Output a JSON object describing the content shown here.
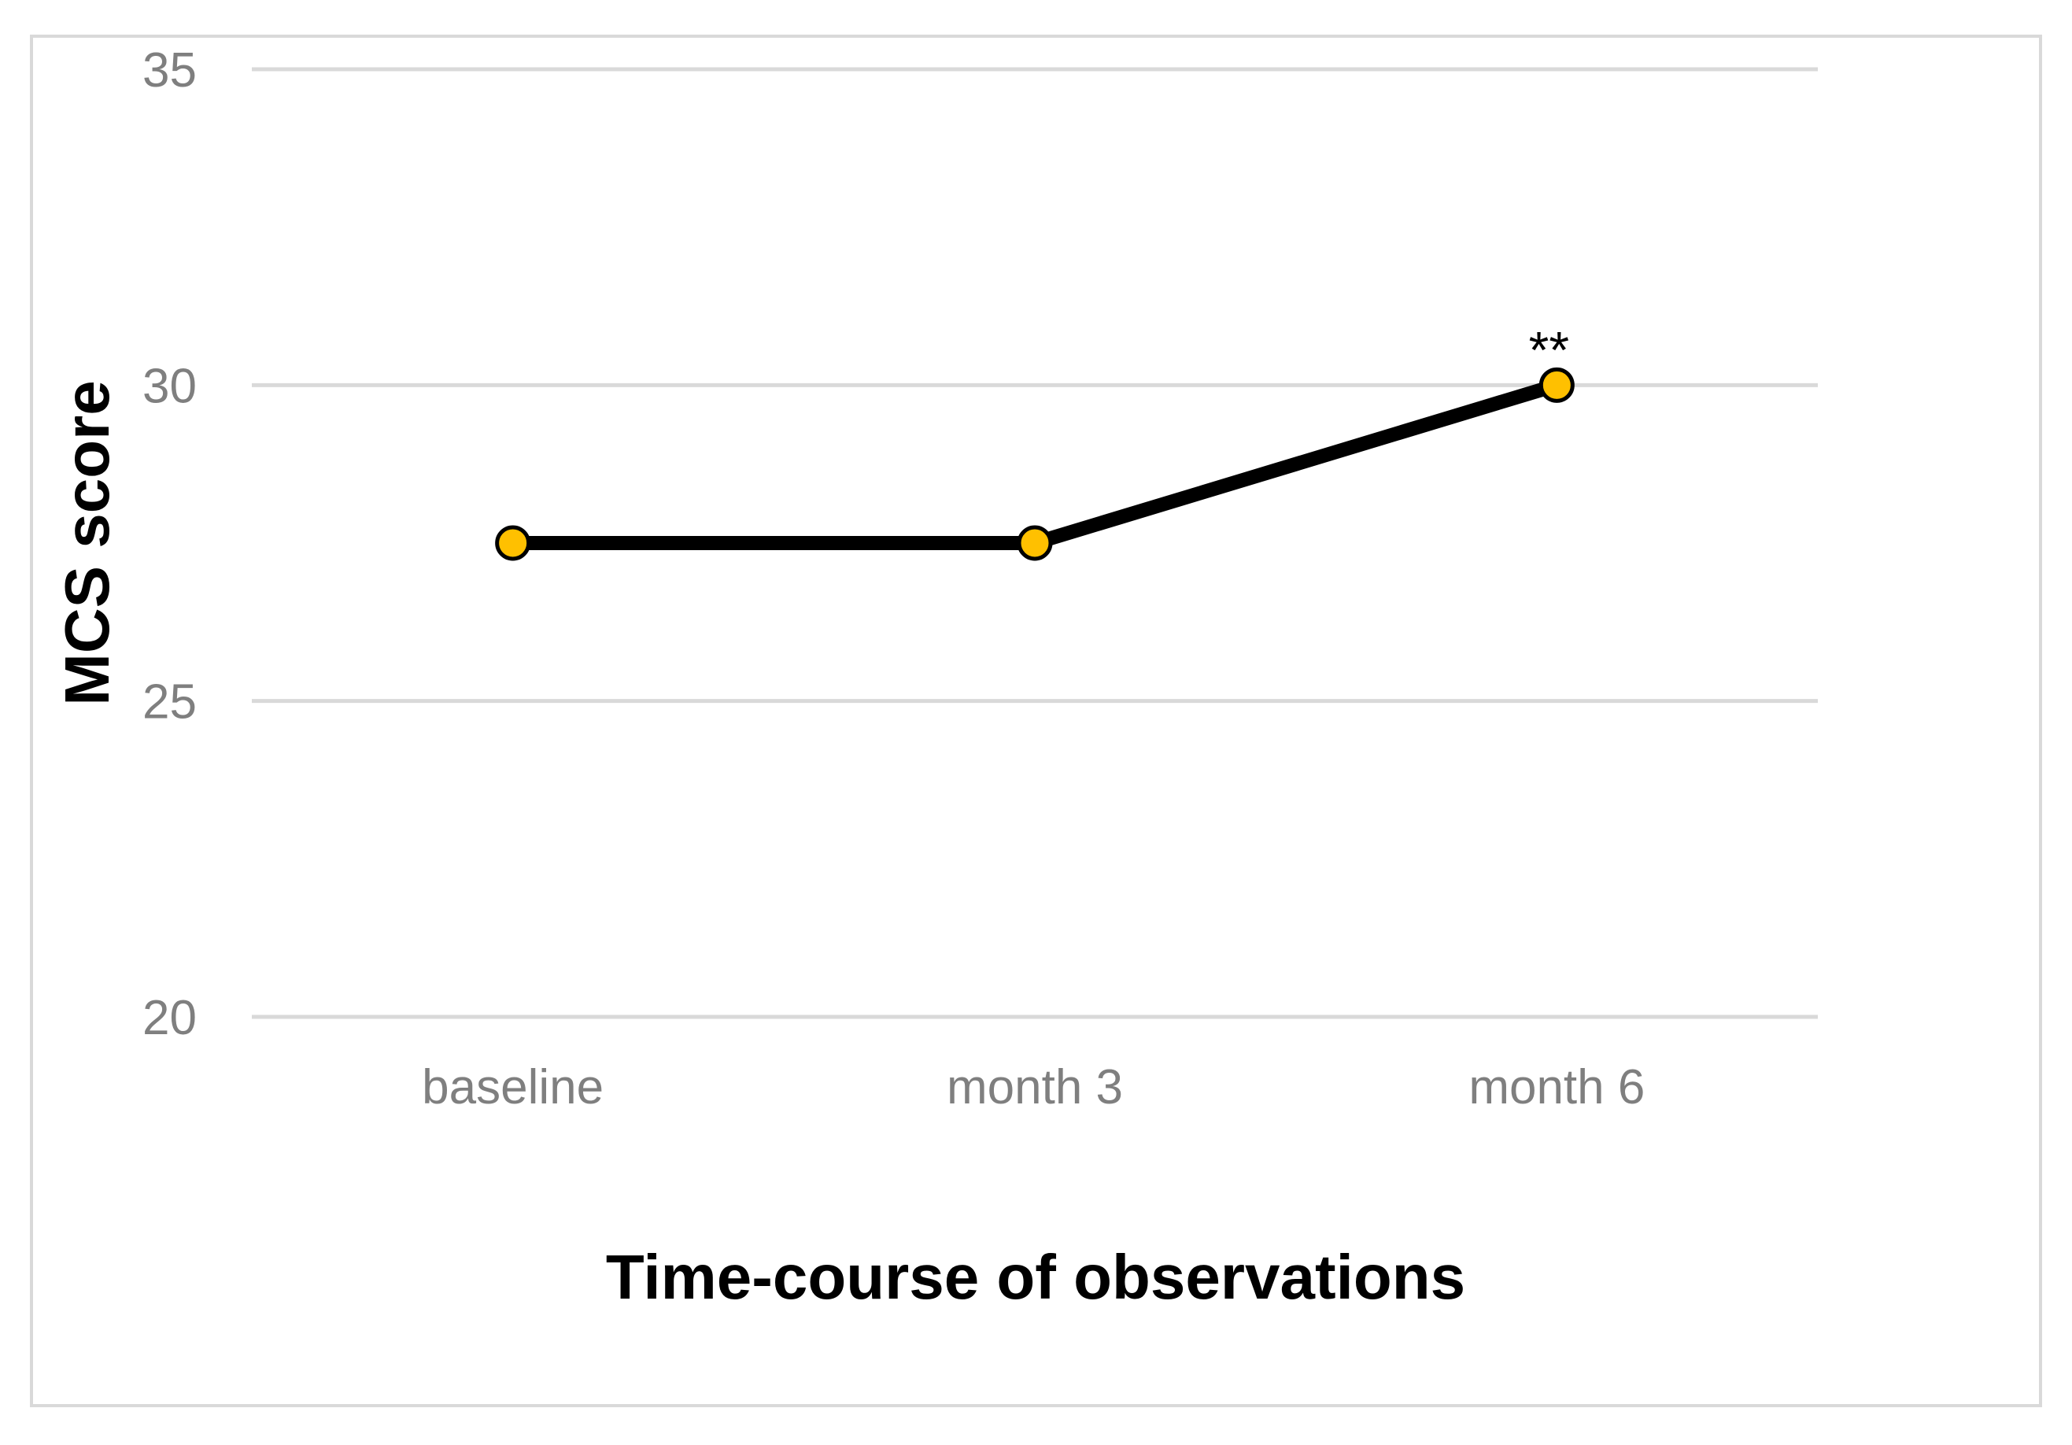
{
  "chart_data": {
    "type": "line",
    "categories": [
      "baseline",
      "month 3",
      "month 6"
    ],
    "series": [
      {
        "values": [
          27.5,
          27.5,
          30
        ]
      }
    ],
    "xlabel": "Time-course of observations",
    "ylabel": "MCS score",
    "ylim": [
      20,
      35
    ],
    "yticks": [
      20,
      25,
      30,
      35
    ],
    "grid": true,
    "legend": "none",
    "annotations": [
      {
        "category": "month 6",
        "text": "**"
      }
    ],
    "colors": {
      "line": "#000000",
      "marker_fill": "#ffc000",
      "marker_stroke": "#000000",
      "grid": "#d9d9d9",
      "tick_text": "#7f7f7f"
    }
  }
}
